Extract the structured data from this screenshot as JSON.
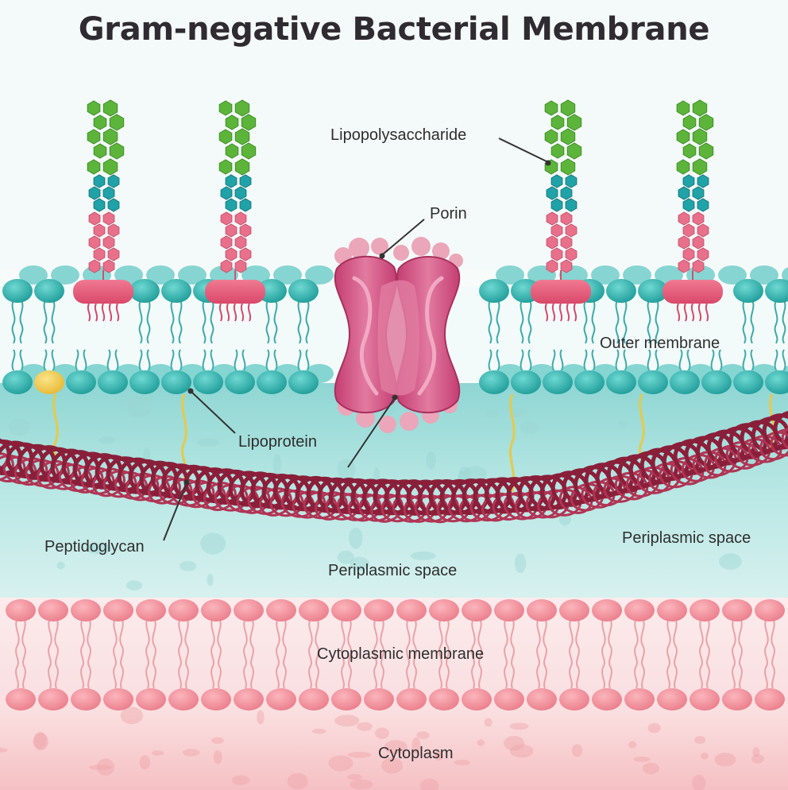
{
  "title": "Gram-negative Bacterial Membrane",
  "labels": {
    "lipopolysaccharide": "Lipopolysaccharide",
    "porin": "Porin",
    "outer_membrane": "Outer membrane",
    "lipoprotein": "Lipoprotein",
    "peptidoglycan": "Peptidoglycan",
    "periplasmic_space_right": "Periplasmic space",
    "periplasmic_space_center": "Periplasmic space",
    "cytoplasmic_membrane": "Cytoplasmic membrane",
    "cytoplasm": "Cytoplasm"
  },
  "colors": {
    "outer_head": "#2bb5b0",
    "lipoprotein_head": "#f2c94c",
    "lps_core": "#e65a7a",
    "lps_sugar_green": "#5cb53a",
    "lps_sugar_teal": "#20a3a8",
    "lps_sugar_pink": "#e8708a",
    "porin": "#d24d7f",
    "peptidoglycan": "#8a1f3a",
    "periplasm": "#b7e6e3",
    "inner_head": "#f08d98",
    "cytoplasm": "#f7c9cc"
  }
}
